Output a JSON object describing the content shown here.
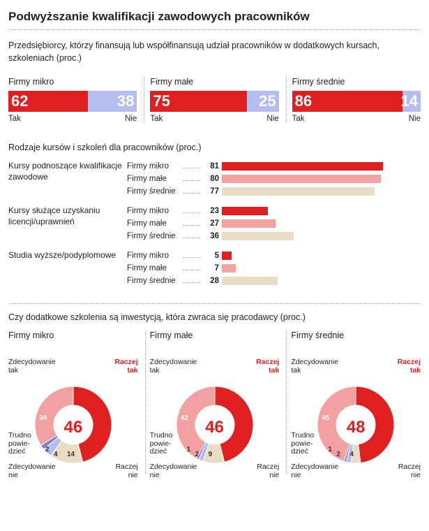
{
  "title": "Podwyższanie kwalifikacji zawodowych pracowników",
  "intro": "Przedsiębiorcy, którzy finansują lub współfinansują udział pracowników w dodatkowych kursach, szkoleniach (proc.)",
  "colors": {
    "red": "#e02020",
    "pink": "#f3a0a0",
    "beige": "#e9dcc5",
    "blue": "#b5bdf0",
    "purple": "#8a7fc4",
    "grey": "#cfcfcf",
    "text": "#222222"
  },
  "stack": {
    "labels": [
      "Firmy mikro",
      "Firmy małe",
      "Firmy średnie"
    ],
    "yes": [
      62,
      75,
      86
    ],
    "no": [
      38,
      25,
      14
    ],
    "yes_color": "#e02020",
    "no_color": "#b5bdf0",
    "yn": [
      "Tak",
      "Nie"
    ]
  },
  "rows_head": "Rodzaje kursów i szkoleń dla pracowników (proc.)",
  "rowgroups": [
    {
      "label": "Kursy podnoszące kwalifikacje zawodowe",
      "rows": [
        {
          "firm": "Firmy mikro",
          "val": 81,
          "color": "#e02020"
        },
        {
          "firm": "Firmy małe",
          "val": 80,
          "color": "#f3a0a0"
        },
        {
          "firm": "Firmy średnie",
          "val": 77,
          "color": "#e9dcc5"
        }
      ]
    },
    {
      "label": "Kursy służące uzyskaniu licencji/uprawnień",
      "rows": [
        {
          "firm": "Firmy mikro",
          "val": 23,
          "color": "#e02020"
        },
        {
          "firm": "Firmy małe",
          "val": 27,
          "color": "#f3a0a0"
        },
        {
          "firm": "Firmy średnie",
          "val": 36,
          "color": "#e9dcc5"
        }
      ]
    },
    {
      "label": "Studia wyższe/podyplomowe",
      "rows": [
        {
          "firm": "Firmy mikro",
          "val": 5,
          "color": "#e02020"
        },
        {
          "firm": "Firmy małe",
          "val": 7,
          "color": "#f3a0a0"
        },
        {
          "firm": "Firmy średnie",
          "val": 28,
          "color": "#e9dcc5"
        }
      ]
    }
  ],
  "donut_head": "Czy dodatkowe szkolenia są inwestycją, która zwraca się pracodawcy (proc.)",
  "donuts": [
    {
      "label": "Firmy mikro",
      "slices": [
        {
          "name": "Raczej tak",
          "val": 46,
          "color": "#e02020"
        },
        {
          "name": "Raczej nie",
          "val": 14,
          "color": "#e9dcc5"
        },
        {
          "name": "Zdecydowanie nie",
          "val": 4,
          "color": "#b5bdf0"
        },
        {
          "name": "Trudno powiedzieć",
          "val": 2,
          "color": "#8a7fc4"
        },
        {
          "name": "Zdecydowanie tak",
          "val": 34,
          "color": "#f3a0a0"
        }
      ],
      "big": 46,
      "raczej_tak": "Raczej tak",
      "zdec_tak": "Zdecydowanie tak",
      "trudno": "Trudno powie-dzieć",
      "zdec_nie": "Zdecydowanie nie",
      "raczej_nie": "Raczej nie",
      "m1": 34,
      "m2": 2,
      "m3": 4,
      "m4": 14
    },
    {
      "label": "Firmy małe",
      "slices": [
        {
          "name": "Raczej tak",
          "val": 46,
          "color": "#e02020"
        },
        {
          "name": "Raczej nie",
          "val": 9,
          "color": "#e9dcc5"
        },
        {
          "name": "Zdecydowanie nie",
          "val": 2,
          "color": "#b5bdf0"
        },
        {
          "name": "Trudno powiedzieć",
          "val": 1,
          "color": "#8a7fc4"
        },
        {
          "name": "Zdecydowanie tak",
          "val": 42,
          "color": "#f3a0a0"
        }
      ],
      "big": 46,
      "raczej_tak": "Raczej tak",
      "zdec_tak": "Zdecydowanie tak",
      "trudno": "Trudno powie-dzieć",
      "zdec_nie": "Zdecydowanie nie",
      "raczej_nie": "Raczej nie",
      "m1": 42,
      "m2": 1,
      "m3": 2,
      "m4": 9
    },
    {
      "label": "Firmy średnie",
      "slices": [
        {
          "name": "Raczej tak",
          "val": 48,
          "color": "#e02020"
        },
        {
          "name": "Raczej nie",
          "val": 4,
          "color": "#e9dcc5"
        },
        {
          "name": "Zdecydowanie nie",
          "val": 2,
          "color": "#b5bdf0"
        },
        {
          "name": "Trudno powiedzieć",
          "val": 1,
          "color": "#8a7fc4"
        },
        {
          "name": "Zdecydowanie tak",
          "val": 45,
          "color": "#f3a0a0"
        }
      ],
      "big": 48,
      "raczej_tak": "Raczej tak",
      "zdec_tak": "Zdecydowanie tak",
      "trudno": "Trudno powie-dzieć",
      "zdec_nie": "Zdecydowanie nie",
      "raczej_nie": "Raczej nie",
      "m1": 45,
      "m2": 1,
      "m3": 2,
      "m4": 4
    }
  ]
}
